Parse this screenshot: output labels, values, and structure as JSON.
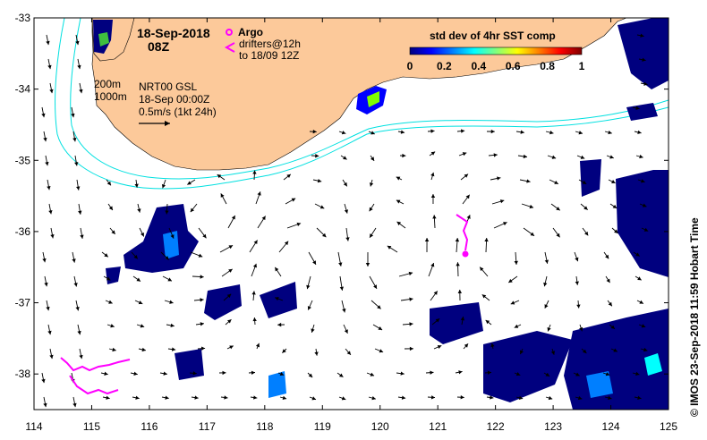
{
  "map": {
    "date_title": "18-Sep-2018",
    "time_title": "08Z",
    "argo_label": "Argo",
    "drifter_label": "drifters@12h",
    "drifter_range": "to 18/09 12Z",
    "depth_200": "200m",
    "depth_1000": "1000m",
    "product": "NRT00 GSL",
    "product_time": "18-Sep 00:00Z",
    "scale_label": "0.5m/s (1kt 24h)",
    "side_credit": "© IMOS 23-Sep-2018 11:59 Hobart Time",
    "colorbar": {
      "title": "std dev of 4hr SST comp",
      "ticks": [
        "0",
        "0.2",
        "0.4",
        "0.6",
        "0.8",
        "1"
      ],
      "range": [
        0,
        1
      ],
      "stops": [
        "#00007f",
        "#0000ff",
        "#007fff",
        "#00ffff",
        "#7fff7f",
        "#ffff00",
        "#ff7f00",
        "#ff0000",
        "#7f0000"
      ]
    },
    "lon_ticks": [
      "114",
      "115",
      "116",
      "117",
      "118",
      "119",
      "120",
      "121",
      "122",
      "123",
      "124",
      "125"
    ],
    "lat_ticks": [
      "-33",
      "-34",
      "-35",
      "-36",
      "-37",
      "-38"
    ],
    "lon_range": [
      114,
      125
    ],
    "lat_range": [
      -38.5,
      -33
    ],
    "colors": {
      "land": "#fcc99a",
      "contour": "#00e0e0",
      "vector": "#000000",
      "drifter": "#ff00ff",
      "data_dark": "#00007f"
    }
  }
}
